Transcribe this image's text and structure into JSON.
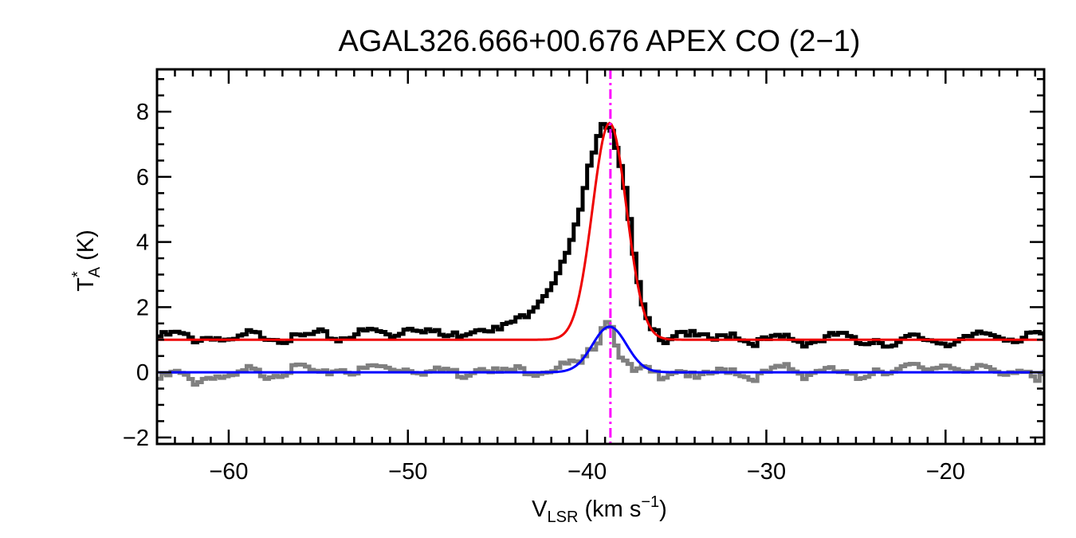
{
  "chart_data": {
    "type": "line",
    "title": "AGAL326.666+00.676  APEX CO (2−1)",
    "xlabel": {
      "main": "V",
      "sub": "LSR",
      "unit_pre": " (km s",
      "unit_sup": "−1",
      "unit_post": ")"
    },
    "ylabel": {
      "main": "T",
      "sup": "*",
      "sub": "A",
      "unit": " (K)"
    },
    "xlim": [
      -64,
      -14.5
    ],
    "ylim": [
      -2.2,
      9.3
    ],
    "x_ticks": [
      {
        "value": -60,
        "label": "−60"
      },
      {
        "value": -50,
        "label": "−50"
      },
      {
        "value": -40,
        "label": "−40"
      },
      {
        "value": -30,
        "label": "−30"
      },
      {
        "value": -20,
        "label": "−20"
      }
    ],
    "y_ticks": [
      {
        "value": -2,
        "label": "−2"
      },
      {
        "value": 0,
        "label": "0"
      },
      {
        "value": 2,
        "label": "2"
      },
      {
        "value": 4,
        "label": "4"
      },
      {
        "value": 6,
        "label": "6"
      },
      {
        "value": 8,
        "label": "8"
      }
    ],
    "x_minor_step": 1,
    "y_minor_step": 0.5,
    "vline": {
      "x": -38.7,
      "color": "#ff00ff",
      "style": "dash-dot"
    },
    "series": [
      {
        "role": "observed-spectrum",
        "color": "#000000",
        "step": true,
        "x": [
          -64,
          -63,
          -62,
          -61,
          -60,
          -59,
          -58,
          -57,
          -56,
          -55,
          -54,
          -53,
          -52,
          -51,
          -50,
          -49,
          -48,
          -47,
          -46,
          -45,
          -44.5,
          -44,
          -43.5,
          -43,
          -42.5,
          -42,
          -41.5,
          -41,
          -40.5,
          -40.2,
          -39.9,
          -39.6,
          -39.3,
          -39.0,
          -38.8,
          -38.6,
          -38.3,
          -38.0,
          -37.7,
          -37.4,
          -37.1,
          -36.8,
          -36.5,
          -36.2,
          -35.8,
          -35.4,
          -35,
          -34,
          -33,
          -32,
          -31,
          -30,
          -29,
          -28,
          -27,
          -26,
          -25,
          -24,
          -23,
          -22,
          -21,
          -20,
          -19,
          -18,
          -17,
          -16,
          -15,
          -14.5
        ],
        "y": [
          1.1,
          1.2,
          1.0,
          1.1,
          0.9,
          1.2,
          1.1,
          1.0,
          1.1,
          1.2,
          1.0,
          1.2,
          1.3,
          1.1,
          1.4,
          1.3,
          1.1,
          1.2,
          1.4,
          1.3,
          1.5,
          1.6,
          1.8,
          2.1,
          2.4,
          2.8,
          3.3,
          4.0,
          4.9,
          5.7,
          6.5,
          7.2,
          7.7,
          7.6,
          7.5,
          7.2,
          6.6,
          5.6,
          4.4,
          3.2,
          2.2,
          1.6,
          1.3,
          1.2,
          1.0,
          1.1,
          1.3,
          1.1,
          1.0,
          1.2,
          0.9,
          1.0,
          1.1,
          0.9,
          1.0,
          1.2,
          0.9,
          1.0,
          0.8,
          1.1,
          1.0,
          0.9,
          1.0,
          1.2,
          1.1,
          1.0,
          1.2,
          1.0
        ]
      },
      {
        "role": "residual-spectrum",
        "color": "#808080",
        "step": true,
        "x": [
          -64,
          -63,
          -62,
          -61,
          -60,
          -59,
          -58,
          -57,
          -56,
          -55,
          -54,
          -53,
          -52,
          -51,
          -50,
          -49,
          -48,
          -47,
          -46,
          -45,
          -44,
          -43,
          -42,
          -41,
          -40.5,
          -40,
          -39.5,
          -39.2,
          -38.9,
          -38.6,
          -38.3,
          -38,
          -37.5,
          -37,
          -36.5,
          -36,
          -35,
          -34,
          -33,
          -32,
          -31,
          -30,
          -29,
          -28,
          -27,
          -26,
          -25,
          -24,
          -23,
          -22,
          -21,
          -20,
          -19,
          -18,
          -17,
          -16,
          -15,
          -14.5
        ],
        "y": [
          -0.2,
          0.0,
          -0.3,
          -0.1,
          -0.2,
          0.1,
          -0.1,
          0.0,
          0.2,
          -0.1,
          0.1,
          0.0,
          0.2,
          0.1,
          0.1,
          0.0,
          0.1,
          -0.1,
          0.2,
          0.0,
          0.1,
          0.0,
          0.1,
          0.3,
          0.2,
          0.6,
          1.0,
          1.5,
          1.7,
          1.1,
          0.6,
          0.3,
          0.0,
          0.1,
          0.0,
          -0.1,
          0.1,
          -0.2,
          0.0,
          0.1,
          -0.2,
          0.0,
          0.2,
          -0.1,
          0.1,
          0.0,
          -0.2,
          0.1,
          0.0,
          0.2,
          0.1,
          0.3,
          -0.1,
          0.2,
          0.0,
          0.1,
          -0.3,
          0.0
        ]
      },
      {
        "role": "gaussian-fit",
        "color": "#ee0000",
        "type": "gaussian",
        "baseline": 1.0,
        "amplitude": 6.65,
        "center": -38.75,
        "sigma": 0.95
      },
      {
        "role": "gaussian-component",
        "color": "#0000ff",
        "type": "gaussian",
        "baseline": 0.0,
        "amplitude": 1.4,
        "center": -38.75,
        "sigma": 0.95
      }
    ]
  }
}
